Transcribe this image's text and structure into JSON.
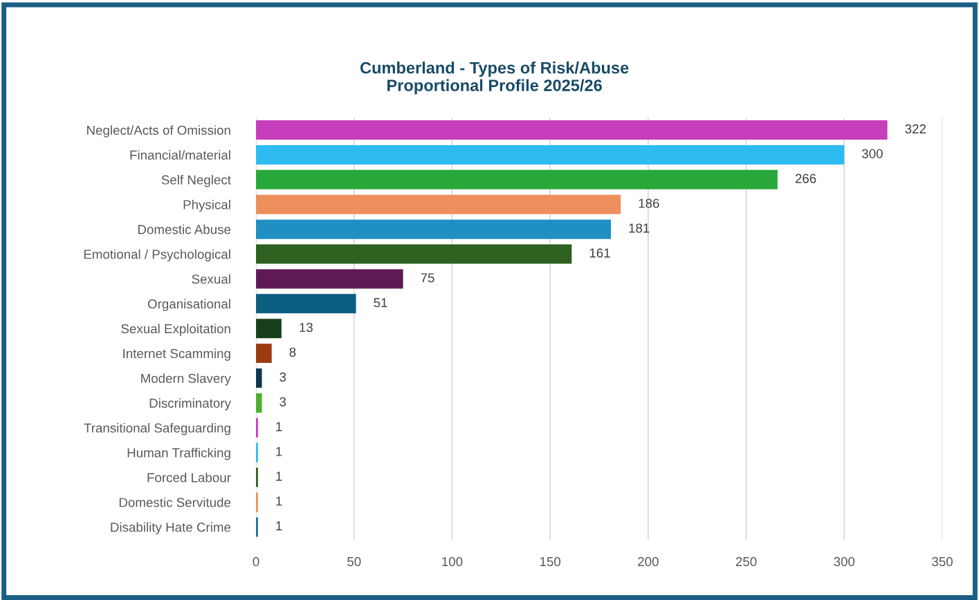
{
  "chart_data": {
    "type": "bar",
    "orientation": "horizontal",
    "title": "Cumberland - Types of Risk/Abuse\nProportional Profile 2025/26",
    "categories": [
      "Neglect/Acts of Omission",
      "Financial/material",
      "Self Neglect",
      "Physical",
      "Domestic Abuse",
      "Emotional / Psychological",
      "Sexual",
      "Organisational",
      "Sexual Exploitation",
      "Internet Scamming",
      "Modern Slavery",
      "Discriminatory",
      "Transitional Safeguarding",
      "Human Trafficking",
      "Forced Labour",
      "Domestic Servitude",
      "Disability Hate Crime"
    ],
    "values": [
      322,
      300,
      266,
      186,
      181,
      161,
      75,
      51,
      13,
      8,
      3,
      3,
      1,
      1,
      1,
      1,
      1
    ],
    "colors": [
      "#c83dbb",
      "#2ebbf0",
      "#28a83a",
      "#ee8f5e",
      "#1f8fc4",
      "#2e6020",
      "#5e1a55",
      "#0b5e80",
      "#163f1a",
      "#9a3b10",
      "#0f3650",
      "#4fb030",
      "#c83dbb",
      "#2ebbf0",
      "#2e6020",
      "#ee8f5e",
      "#1f6f9c"
    ],
    "xlim": [
      0,
      350
    ],
    "xticks": [
      0,
      50,
      100,
      150,
      200,
      250,
      300,
      350
    ],
    "grid": "x",
    "data_labels": true
  }
}
